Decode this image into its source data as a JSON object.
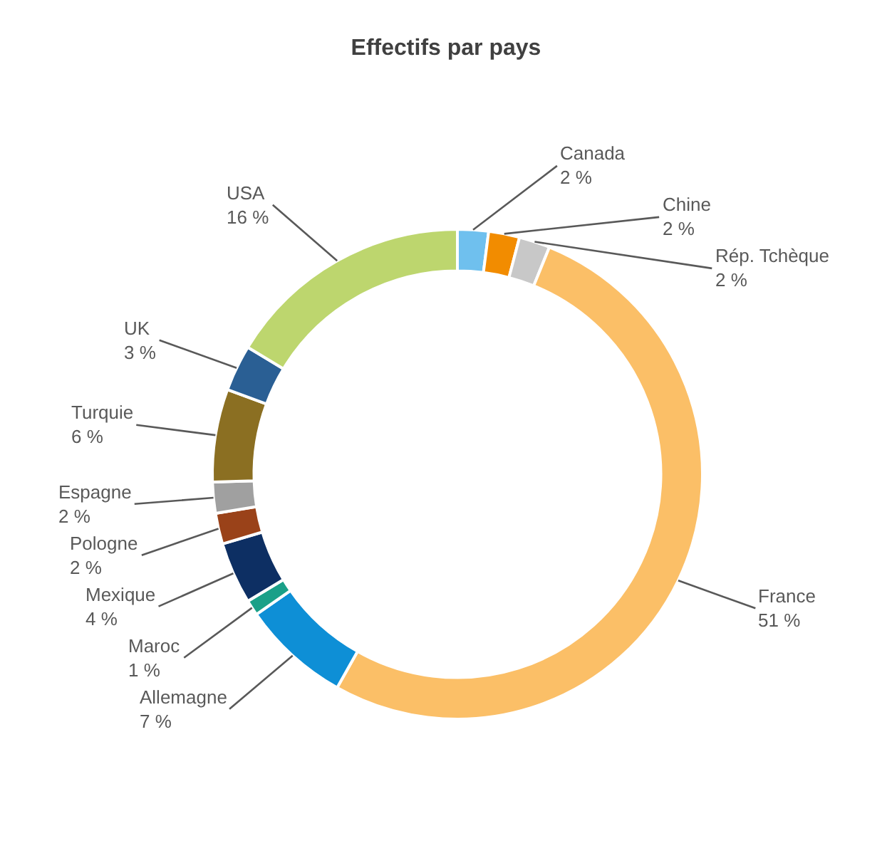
{
  "chart_data": {
    "type": "donut",
    "title": "Effectifs par pays",
    "categories": [
      "Canada",
      "Chine",
      "Rép. Tchèque",
      "France",
      "Allemagne",
      "Maroc",
      "Mexique",
      "Pologne",
      "Espagne",
      "Turquie",
      "UK",
      "USA"
    ],
    "values": [
      2,
      2,
      2,
      51,
      7,
      1,
      4,
      2,
      2,
      6,
      3,
      16
    ],
    "value_labels": [
      "2 %",
      "2 %",
      "2 %",
      "51 %",
      "7 %",
      "1 %",
      "4 %",
      "2 %",
      "2 %",
      "6 %",
      "3 %",
      "16 %"
    ],
    "colors": [
      "#6fc0ee",
      "#f28c00",
      "#c8c8c8",
      "#fbbf67",
      "#0e8fd6",
      "#1aa088",
      "#0d2f63",
      "#9a4219",
      "#a0a0a0",
      "#8b6f22",
      "#2a5f94",
      "#bdd66e"
    ],
    "legend": false
  }
}
